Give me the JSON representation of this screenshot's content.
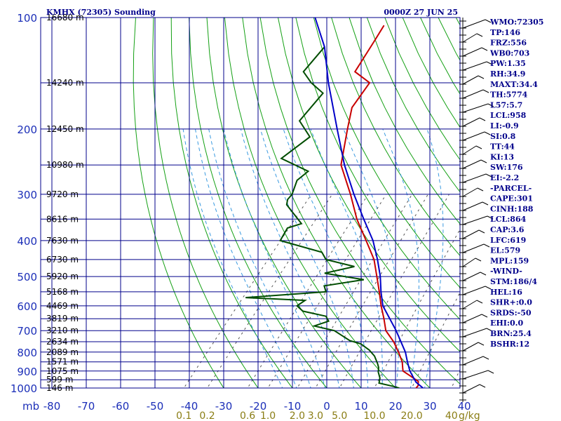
{
  "chart_data": {
    "type": "line",
    "title": "KMHX (72305) Sounding",
    "valid_time": "0000Z 27 JUN 25",
    "pressure_unit": "mb",
    "mixing_ratio_unit": "g/kg",
    "pressure_ticks": [
      100,
      200,
      300,
      400,
      500,
      600,
      700,
      800,
      900,
      1000
    ],
    "temperature_ticks": [
      -80,
      -70,
      -60,
      -50,
      -40,
      -30,
      -20,
      -10,
      0,
      10,
      20,
      30,
      40
    ],
    "mixing_ratio_ticks": [
      "0.1",
      "0.2",
      "0.6",
      "1.0",
      "2.0",
      "3.0",
      "5.0",
      "10.0",
      "20.0",
      "40"
    ],
    "height_labels": [
      {
        "p": 100,
        "label": "16680 m"
      },
      {
        "p": 150,
        "label": "14240 m"
      },
      {
        "p": 200,
        "label": "12450 m"
      },
      {
        "p": 250,
        "label": "10980 m"
      },
      {
        "p": 300,
        "label": "9720 m"
      },
      {
        "p": 350,
        "label": "8616 m"
      },
      {
        "p": 400,
        "label": "7630 m"
      },
      {
        "p": 450,
        "label": "6730 m"
      },
      {
        "p": 500,
        "label": "5920 m"
      },
      {
        "p": 550,
        "label": "5168 m"
      },
      {
        "p": 600,
        "label": "4469 m"
      },
      {
        "p": 650,
        "label": "3819 m"
      },
      {
        "p": 700,
        "label": "3210 m"
      },
      {
        "p": 750,
        "label": "2634 m"
      },
      {
        "p": 800,
        "label": "2089 m"
      },
      {
        "p": 850,
        "label": "1571 m"
      },
      {
        "p": 900,
        "label": "1075 m"
      },
      {
        "p": 950,
        "label": "599 m"
      },
      {
        "p": 1000,
        "label": "146 m"
      }
    ],
    "series": [
      {
        "key": "temperature",
        "color": "#c80000",
        "p": [
          1015,
          1000,
          985,
          960,
          925,
          900,
          880,
          850,
          800,
          750,
          700,
          650,
          600,
          550,
          500,
          450,
          400,
          350,
          300,
          250,
          200,
          175,
          150,
          140,
          115,
          105
        ],
        "v": [
          27,
          26,
          26,
          25,
          21,
          18,
          17,
          15.5,
          12,
          8,
          3,
          -0.5,
          -4.5,
          -8.5,
          -13,
          -18,
          -25,
          -33,
          -41,
          -51,
          -58,
          -62,
          -63,
          -70,
          -72,
          -73
        ]
      },
      {
        "key": "dewpoint",
        "color": "#004d00",
        "p": [
          1015,
          1000,
          990,
          970,
          940,
          905,
          880,
          860,
          820,
          790,
          760,
          745,
          700,
          680,
          660,
          640,
          620,
          600,
          580,
          570,
          550,
          530,
          510,
          490,
          470,
          450,
          430,
          400,
          370,
          360,
          320,
          310,
          300,
          275,
          260,
          240,
          210,
          190,
          160,
          150,
          140,
          120
        ],
        "v": [
          22,
          21,
          19,
          14,
          13,
          11,
          10,
          8.8,
          6,
          3,
          -1,
          -5,
          -12,
          -19,
          -16,
          -18,
          -26,
          -29,
          -28,
          -46,
          -24,
          -26,
          -16,
          -29,
          -22,
          -32,
          -35,
          -50,
          -51,
          -48,
          -57,
          -58,
          -58,
          -60,
          -59,
          -70,
          -67,
          -74,
          -74,
          -80,
          -85,
          -85
        ]
      },
      {
        "key": "parcel",
        "color": "#0000c8",
        "p": [
          1015,
          1000,
          964,
          900,
          850,
          800,
          700,
          600,
          550,
          500,
          450,
          400,
          350,
          300,
          250,
          200,
          150,
          120,
          100
        ],
        "v": [
          30,
          28,
          24.5,
          20,
          17,
          14,
          6,
          -4,
          -8,
          -12,
          -17,
          -23,
          -31,
          -40,
          -50,
          -61,
          -75,
          -85,
          -95
        ]
      }
    ],
    "indices": [
      "WMO:72305",
      "TP:146",
      "FRZ:556",
      "WB0:703",
      "PW:1.35",
      "RH:34.9",
      "MAXT:34.4",
      "TH:5774",
      "L57:5.7",
      "LCL:958",
      "LI:-0.9",
      "SI:0.8",
      "TT:44",
      "KI:13",
      "SW:176",
      "EI:-2.2",
      "-PARCEL-",
      "CAPE:301",
      "CINH:188",
      "LCL:864",
      "CAP:3.6",
      "LFC:619",
      "EL:579",
      "MPL:159",
      "-WIND-",
      "STM:186/4",
      "HEL:16",
      "SHR+:0.0",
      "SRDS:-50",
      "EHI:0.0",
      "BRN:25.4",
      "BSHR:12"
    ],
    "colors": {
      "grid": "#00008b",
      "dry_adiabat": "#14a014",
      "moist_adiabat": "#3a9ae0",
      "mixing_ratio": "#555555",
      "axis_labels": "#1c2fb8",
      "mixing_ratio_labels": "#8a7d14",
      "temperature": "#c80000",
      "dewpoint": "#004d00",
      "parcel": "#0000c8"
    }
  }
}
